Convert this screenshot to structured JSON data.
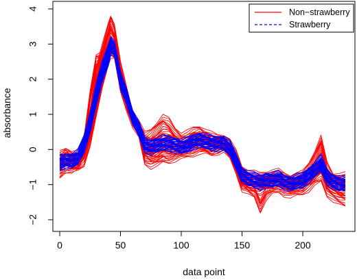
{
  "chart_data": {
    "type": "line",
    "xlabel": "data point",
    "ylabel": "absorbance",
    "xlim": [
      0,
      235
    ],
    "ylim": [
      -2,
      4
    ],
    "x_ticks": [
      0,
      50,
      100,
      150,
      200
    ],
    "y_ticks": [
      -2,
      -1,
      0,
      1,
      2,
      3,
      4
    ],
    "legend_position": "top-right",
    "legend": [
      {
        "label": "Non−strawberry",
        "color": "#ff0000",
        "line_style": "solid"
      },
      {
        "label": "Strawberry",
        "color": "#0000ff",
        "line_style": "dashed"
      }
    ],
    "x": [
      0,
      5,
      10,
      15,
      20,
      25,
      30,
      35,
      40,
      42,
      45,
      50,
      55,
      60,
      65,
      70,
      75,
      80,
      85,
      90,
      95,
      100,
      105,
      110,
      115,
      120,
      125,
      130,
      135,
      140,
      145,
      150,
      155,
      160,
      165,
      170,
      175,
      180,
      185,
      190,
      195,
      200,
      205,
      210,
      215,
      220,
      225,
      230,
      235
    ],
    "series": [
      {
        "color": "#ff0000",
        "line_style": "solid",
        "curves": [
          [
            -0.35,
            -0.25,
            -0.3,
            -0.3,
            0.05,
            0.8,
            1.8,
            2.5,
            3.1,
            3.3,
            3.1,
            2.1,
            1.5,
            0.9,
            0.6,
            0.2,
            0.15,
            0.25,
            0.45,
            0.4,
            0.25,
            0.15,
            0.2,
            0.3,
            0.35,
            0.3,
            0.2,
            0.15,
            0.2,
            0.05,
            -0.3,
            -0.75,
            -0.85,
            -0.9,
            -0.95,
            -0.9,
            -0.85,
            -0.8,
            -0.9,
            -0.95,
            -0.9,
            -0.85,
            -0.7,
            -0.5,
            -0.3,
            -0.75,
            -0.9,
            -0.95,
            -0.95
          ],
          [
            -0.5,
            -0.45,
            -0.5,
            -0.4,
            -0.05,
            0.6,
            1.5,
            2.3,
            2.8,
            3.0,
            2.9,
            2.0,
            1.4,
            0.85,
            0.55,
            -0.15,
            -0.2,
            -0.15,
            -0.05,
            -0.1,
            -0.05,
            0.0,
            0.05,
            0.1,
            0.15,
            0.1,
            0.05,
            0.1,
            0.15,
            -0.05,
            -0.4,
            -0.9,
            -1.0,
            -1.05,
            -1.1,
            -1.0,
            -1.0,
            -0.95,
            -1.05,
            -1.1,
            -1.05,
            -1.0,
            -0.85,
            -0.7,
            -0.5,
            -0.95,
            -1.1,
            -1.2,
            -1.25
          ],
          [
            -0.25,
            -0.15,
            -0.2,
            -0.2,
            0.2,
            1.0,
            2.2,
            2.8,
            3.4,
            3.65,
            3.4,
            2.3,
            1.6,
            0.95,
            0.65,
            0.3,
            0.4,
            0.6,
            0.8,
            0.7,
            0.45,
            0.3,
            0.35,
            0.45,
            0.5,
            0.4,
            0.3,
            0.25,
            0.25,
            0.1,
            -0.2,
            -0.65,
            -0.75,
            -0.8,
            -0.85,
            -0.8,
            -0.75,
            -0.75,
            -0.85,
            -0.9,
            -0.85,
            -0.8,
            -0.55,
            -0.2,
            0.2,
            -0.55,
            -0.85,
            -0.85,
            -0.85
          ],
          [
            -0.65,
            -0.45,
            -0.45,
            -0.45,
            -0.3,
            0.3,
            1.1,
            1.9,
            2.6,
            2.8,
            2.75,
            1.8,
            1.3,
            0.8,
            0.5,
            -0.25,
            -0.35,
            -0.3,
            -0.2,
            -0.2,
            -0.15,
            -0.1,
            -0.05,
            0.0,
            0.05,
            0.05,
            0.0,
            0.05,
            0.1,
            -0.1,
            -0.5,
            -1.0,
            -1.1,
            -1.2,
            -1.6,
            -1.25,
            -1.1,
            -1.05,
            -1.15,
            -1.2,
            -1.15,
            -1.1,
            -1.0,
            -0.85,
            -0.75,
            -1.15,
            -1.3,
            -1.4,
            -1.45
          ],
          [
            -0.3,
            -0.2,
            -0.35,
            -0.3,
            0.15,
            1.5,
            2.55,
            2.6,
            2.7,
            2.85,
            2.8,
            1.9,
            1.45,
            0.9,
            0.6,
            0.05,
            0.0,
            0.1,
            0.2,
            0.2,
            0.15,
            0.1,
            0.15,
            0.25,
            0.3,
            0.25,
            0.15,
            0.15,
            0.15,
            0.0,
            -0.35,
            -0.8,
            -0.9,
            -0.95,
            -1.0,
            -0.95,
            -0.9,
            -0.85,
            -0.95,
            -1.0,
            -0.95,
            -0.9,
            -0.75,
            -0.6,
            -0.45,
            -0.85,
            -1.0,
            -1.05,
            -1.05
          ]
        ]
      },
      {
        "name": "Strawberry",
        "color": "#0000ff",
        "line_style": "dashed",
        "curves": [
          [
            -0.35,
            -0.3,
            -0.3,
            -0.2,
            0.2,
            0.9,
            1.7,
            2.3,
            2.8,
            3.05,
            2.9,
            2.0,
            1.55,
            0.95,
            0.6,
            0.15,
            0.1,
            0.15,
            0.2,
            0.2,
            0.15,
            0.1,
            0.15,
            0.25,
            0.3,
            0.25,
            0.2,
            0.2,
            0.2,
            0.05,
            -0.3,
            -0.7,
            -0.8,
            -0.85,
            -0.9,
            -0.85,
            -0.85,
            -0.8,
            -0.9,
            -0.95,
            -0.9,
            -0.85,
            -0.7,
            -0.55,
            -0.35,
            -0.75,
            -0.9,
            -0.95,
            -0.95
          ],
          [
            -0.4,
            -0.35,
            -0.35,
            -0.25,
            0.1,
            0.7,
            1.4,
            2.1,
            2.6,
            2.9,
            2.8,
            1.9,
            1.5,
            0.9,
            0.55,
            0.1,
            0.05,
            0.1,
            0.15,
            0.15,
            0.1,
            0.05,
            0.1,
            0.2,
            0.25,
            0.2,
            0.15,
            0.15,
            0.15,
            0.0,
            -0.35,
            -0.75,
            -0.85,
            -0.9,
            -0.95,
            -0.9,
            -0.9,
            -0.85,
            -0.95,
            -1.0,
            -0.95,
            -0.9,
            -0.75,
            -0.6,
            -0.45,
            -0.8,
            -0.95,
            -1.0,
            -1.0
          ]
        ]
      }
    ]
  }
}
